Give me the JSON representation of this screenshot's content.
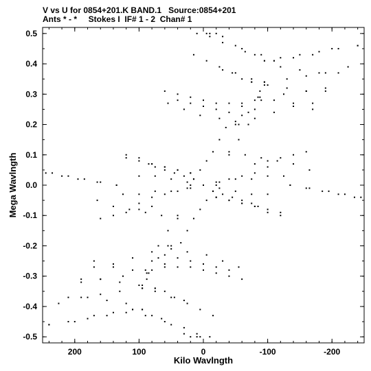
{
  "header": {
    "line1": "V vs U for 0854+201.K BAND.1   Source:0854+201",
    "line2": "Ants * - *     Stokes I  IF# 1 - 2  Chan# 1"
  },
  "chart_data": {
    "type": "scatter",
    "xlabel": "Kilo Wavlngth",
    "ylabel": "Mega Wavlngth",
    "xlim": [
      250,
      -250
    ],
    "ylim": [
      -0.52,
      0.52
    ],
    "x_ticks": [
      200,
      100,
      0,
      -100,
      -200
    ],
    "x_tick_labels": [
      "200",
      "100",
      "0",
      "-100",
      "-200"
    ],
    "y_ticks": [
      0.5,
      0.4,
      0.3,
      0.2,
      0.1,
      0.0,
      -0.1,
      -0.2,
      -0.3,
      -0.4,
      -0.5
    ],
    "y_tick_labels": [
      "0.5",
      "0.4",
      "0.3",
      "0.2",
      "0.1",
      "0.0",
      "-0.1",
      "-0.2",
      "-0.3",
      "-0.4",
      "-0.5"
    ],
    "tracks": [
      {
        "x": [
          10,
          -10,
          -30,
          -60,
          -90,
          -110
        ],
        "y": [
          0.5,
          0.49,
          0.47,
          0.45,
          0.43,
          0.41
        ]
      },
      {
        "x": [
          -110,
          -140,
          -170,
          -200,
          -240
        ],
        "y": [
          0.41,
          0.42,
          0.43,
          0.45,
          0.46
        ]
      },
      {
        "x": [
          15,
          -5,
          -25,
          -50,
          -75,
          -95
        ],
        "y": [
          0.43,
          0.41,
          0.39,
          0.37,
          0.35,
          0.34
        ]
      },
      {
        "x": [
          -95,
          -130,
          -160,
          -190,
          -225
        ],
        "y": [
          0.34,
          0.35,
          0.36,
          0.37,
          0.39
        ]
      },
      {
        "x": [
          60,
          40,
          20,
          0,
          -20,
          -40,
          -60
        ],
        "y": [
          0.31,
          0.3,
          0.29,
          0.28,
          0.27,
          0.27,
          0.26
        ]
      },
      {
        "x": [
          -60,
          -90,
          -125,
          -160,
          -190
        ],
        "y": [
          0.27,
          0.28,
          0.3,
          0.31,
          0.32
        ]
      },
      {
        "x": [
          55,
          30,
          5,
          -25,
          -50
        ],
        "y": [
          0.27,
          0.25,
          0.23,
          0.22,
          0.2
        ]
      },
      {
        "x": [
          -50,
          -80,
          -110,
          -140,
          -170
        ],
        "y": [
          0.21,
          0.22,
          0.24,
          0.26,
          0.27
        ]
      },
      {
        "x": [
          -35,
          -25,
          -15,
          -5,
          5,
          15,
          20
        ],
        "y": [
          0.19,
          0.15,
          0.11,
          0.08,
          0.05,
          0.02,
          0.0
        ]
      },
      {
        "x": [
          -55,
          -70,
          -80,
          -88,
          -95
        ],
        "y": [
          0.2,
          0.24,
          0.28,
          0.31,
          0.34
        ]
      },
      {
        "x": [
          0,
          -15,
          -30,
          -45,
          -60,
          -75,
          -85
        ],
        "y": [
          0.0,
          -0.02,
          -0.03,
          -0.04,
          -0.05,
          -0.06,
          -0.07
        ]
      },
      {
        "x": [
          0,
          20,
          40,
          60,
          80,
          100
        ],
        "y": [
          0.0,
          -0.01,
          -0.02,
          -0.03,
          -0.04,
          -0.06
        ]
      },
      {
        "x": [
          0,
          25,
          50,
          75,
          100
        ],
        "y": [
          0.0,
          0.01,
          0.02,
          0.03,
          0.03
        ]
      },
      {
        "x": [
          0,
          -25,
          -50,
          -75,
          -100,
          -125
        ],
        "y": [
          0.0,
          0.01,
          0.02,
          0.02,
          0.03,
          0.03
        ]
      },
      {
        "x": [
          120,
          100,
          80,
          60,
          40,
          20
        ],
        "y": [
          0.09,
          0.08,
          0.07,
          0.06,
          0.05,
          0.04
        ]
      },
      {
        "x": [
          -20,
          -40,
          -60,
          -80,
          -100,
          -120
        ],
        "y": [
          -0.04,
          -0.05,
          -0.06,
          -0.07,
          -0.09,
          -0.1
        ]
      },
      {
        "x": [
          60,
          40,
          20,
          0,
          -20,
          -40
        ],
        "y": [
          -0.23,
          -0.24,
          -0.25,
          -0.26,
          -0.27,
          -0.28
        ]
      },
      {
        "x": [
          170,
          140,
          110,
          85
        ],
        "y": [
          -0.25,
          -0.27,
          -0.28,
          -0.29
        ]
      },
      {
        "x": [
          40,
          55,
          70,
          80,
          88,
          95
        ],
        "y": [
          -0.1,
          -0.15,
          -0.2,
          -0.25,
          -0.29,
          -0.33
        ]
      },
      {
        "x": [
          190,
          160,
          130,
          100,
          75
        ],
        "y": [
          -0.31,
          -0.31,
          -0.32,
          -0.33,
          -0.34
        ]
      },
      {
        "x": [
          75,
          60,
          45,
          30
        ],
        "y": [
          -0.34,
          -0.35,
          -0.37,
          -0.38
        ]
      },
      {
        "x": [
          210,
          180,
          150,
          120,
          95
        ],
        "y": [
          -0.37,
          -0.37,
          -0.38,
          -0.39,
          -0.41
        ]
      },
      {
        "x": [
          95,
          80,
          65,
          50
        ],
        "y": [
          -0.41,
          -0.43,
          -0.44,
          -0.46
        ]
      },
      {
        "x": [
          240,
          210,
          180,
          150,
          120
        ],
        "y": [
          -0.46,
          -0.45,
          -0.44,
          -0.43,
          -0.42
        ]
      },
      {
        "x": [
          30,
          20,
          10,
          5
        ],
        "y": [
          -0.49,
          -0.5,
          -0.5,
          -0.5
        ]
      },
      {
        "x": [
          160,
          140,
          120,
          100,
          80
        ],
        "y": [
          -0.11,
          -0.1,
          -0.09,
          -0.08,
          -0.07
        ]
      },
      {
        "x": [
          -40,
          -65,
          -90,
          -115,
          -140,
          -165
        ],
        "y": [
          0.11,
          0.1,
          0.09,
          0.08,
          0.07,
          0.05
        ]
      },
      {
        "x": [
          235,
          210,
          185,
          160,
          135
        ],
        "y": [
          0.04,
          0.03,
          0.02,
          0.01,
          0.0
        ]
      },
      {
        "x": [
          -135,
          -165,
          -195,
          -220,
          -245
        ],
        "y": [
          0.0,
          -0.01,
          -0.02,
          -0.03,
          -0.04
        ]
      }
    ]
  }
}
